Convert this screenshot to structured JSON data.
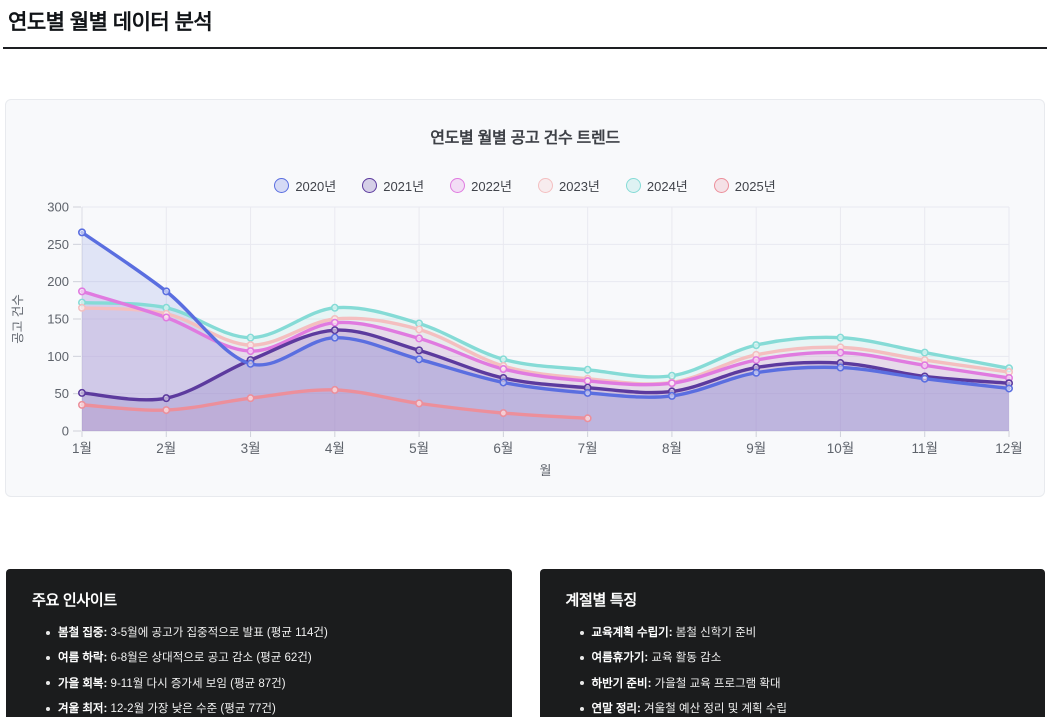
{
  "page": {
    "title": "연도별 월별 데이터 분석"
  },
  "colors": {
    "card_bg": "#f8f9fb",
    "card_border": "#e8eaee",
    "insight_bg": "#1b1c1d",
    "grid": "#e9e9f0",
    "axis_text": "#5e636b"
  },
  "chart_data": {
    "type": "line",
    "title": "연도별 월별 공고 건수 트렌드",
    "xlabel": "월",
    "ylabel": "공고 건수",
    "categories": [
      "1월",
      "2월",
      "3월",
      "4월",
      "5월",
      "6월",
      "7월",
      "8월",
      "9월",
      "10월",
      "11월",
      "12월"
    ],
    "ylim": [
      0,
      300
    ],
    "ytick_step": 50,
    "grid": true,
    "legend_position": "top",
    "series": [
      {
        "name": "2020년",
        "color": "#5a6ee0",
        "values": [
          266,
          187,
          90,
          125,
          96,
          65,
          51,
          47,
          78,
          85,
          70,
          57
        ]
      },
      {
        "name": "2021년",
        "color": "#5c3a9e",
        "values": [
          51,
          44,
          95,
          135,
          108,
          71,
          58,
          53,
          85,
          91,
          73,
          64
        ]
      },
      {
        "name": "2022년",
        "color": "#e07ae0",
        "values": [
          187,
          152,
          107,
          145,
          124,
          83,
          67,
          64,
          95,
          105,
          88,
          71
        ]
      },
      {
        "name": "2023년",
        "color": "#f4bfc0",
        "values": [
          165,
          157,
          115,
          150,
          136,
          87,
          70,
          65,
          102,
          112,
          95,
          79
        ]
      },
      {
        "name": "2024년",
        "color": "#85dbd6",
        "values": [
          172,
          165,
          125,
          165,
          144,
          96,
          82,
          74,
          115,
          125,
          105,
          84
        ]
      },
      {
        "name": "2025년",
        "color": "#ec8f9b",
        "values": [
          35,
          28,
          44,
          55,
          37,
          24,
          17,
          null,
          null,
          null,
          null,
          null
        ]
      }
    ]
  },
  "insights": {
    "title": "주요 인사이트",
    "items": [
      {
        "label": "봄철 집중:",
        "text": "3-5월에 공고가 집중적으로 발표 (평균 114건)"
      },
      {
        "label": "여름 하락:",
        "text": "6-8월은 상대적으로 공고 감소 (평균 62건)"
      },
      {
        "label": "가을 회복:",
        "text": "9-11월 다시 증가세 보임 (평균 87건)"
      },
      {
        "label": "겨울 최저:",
        "text": "12-2월 가장 낮은 수준 (평균 77건)"
      }
    ]
  },
  "seasonal": {
    "title": "계절별 특징",
    "items": [
      {
        "label": "교육계획 수립기:",
        "text": "봄철 신학기 준비"
      },
      {
        "label": "여름휴가기:",
        "text": "교육 활동 감소"
      },
      {
        "label": "하반기 준비:",
        "text": "가을철 교육 프로그램 확대"
      },
      {
        "label": "연말 정리:",
        "text": "겨울철 예산 정리 및 계획 수립"
      }
    ]
  }
}
